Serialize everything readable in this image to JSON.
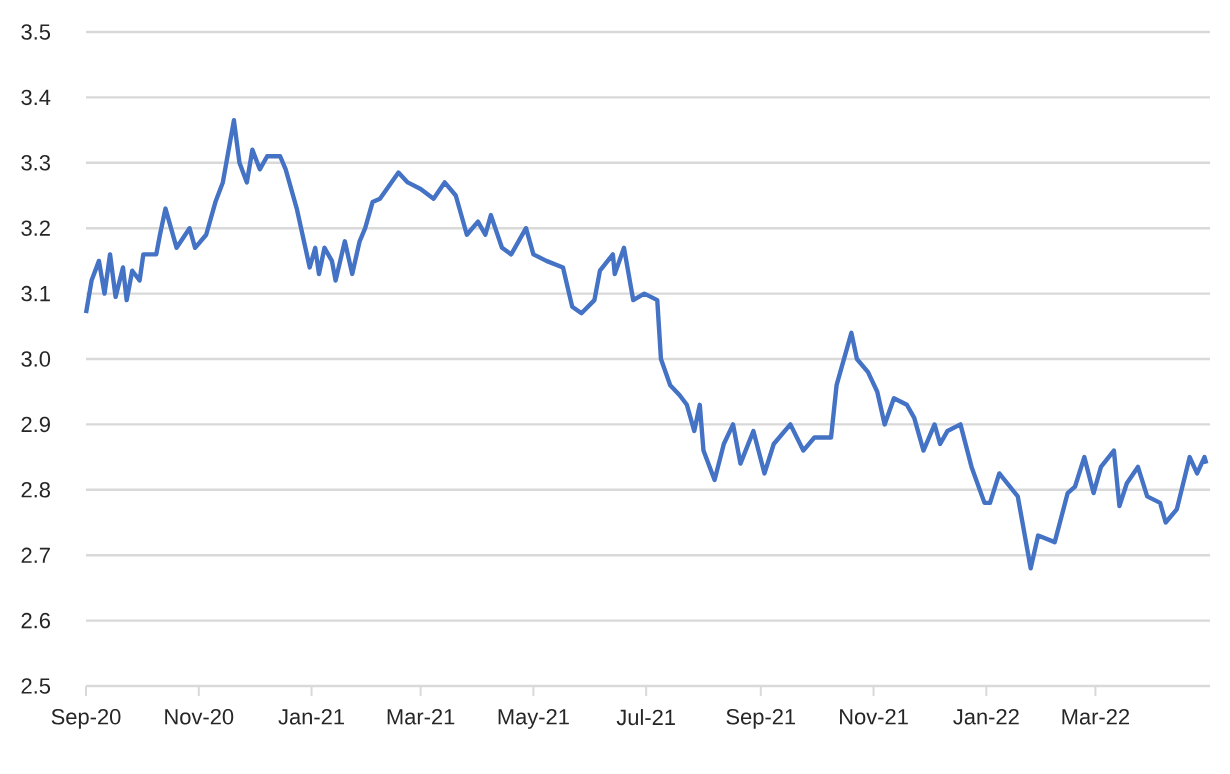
{
  "chart_data": {
    "type": "line",
    "x": [
      "2020-09-01",
      "2020-09-04",
      "2020-09-08",
      "2020-09-11",
      "2020-09-14",
      "2020-09-17",
      "2020-09-21",
      "2020-09-23",
      "2020-09-26",
      "2020-09-30",
      "2020-10-02",
      "2020-10-09",
      "2020-10-11",
      "2020-10-14",
      "2020-10-20",
      "2020-10-27",
      "2020-10-30",
      "2020-11-05",
      "2020-11-10",
      "2020-11-14",
      "2020-11-20",
      "2020-11-23",
      "2020-11-27",
      "2020-11-30",
      "2020-12-04",
      "2020-12-08",
      "2020-12-15",
      "2020-12-18",
      "2020-12-24",
      "2020-12-31",
      "2021-01-03",
      "2021-01-05",
      "2021-01-08",
      "2021-01-12",
      "2021-01-14",
      "2021-01-19",
      "2021-01-23",
      "2021-01-27",
      "2021-01-30",
      "2021-02-03",
      "2021-02-07",
      "2021-02-17",
      "2021-02-22",
      "2021-03-01",
      "2021-03-08",
      "2021-03-14",
      "2021-03-20",
      "2021-03-26",
      "2021-04-01",
      "2021-04-05",
      "2021-04-08",
      "2021-04-14",
      "2021-04-19",
      "2021-04-27",
      "2021-05-01",
      "2021-05-08",
      "2021-05-17",
      "2021-05-22",
      "2021-05-27",
      "2021-06-03",
      "2021-06-06",
      "2021-06-13",
      "2021-06-14",
      "2021-06-19",
      "2021-06-24",
      "2021-06-30",
      "2021-07-07",
      "2021-07-09",
      "2021-07-14",
      "2021-07-19",
      "2021-07-23",
      "2021-07-27",
      "2021-07-30",
      "2021-08-01",
      "2021-08-07",
      "2021-08-12",
      "2021-08-17",
      "2021-08-21",
      "2021-08-28",
      "2021-09-03",
      "2021-09-08",
      "2021-09-17",
      "2021-09-24",
      "2021-09-30",
      "2021-10-09",
      "2021-10-12",
      "2021-10-20",
      "2021-10-23",
      "2021-10-29",
      "2021-11-03",
      "2021-11-07",
      "2021-11-12",
      "2021-11-19",
      "2021-11-23",
      "2021-11-28",
      "2021-12-04",
      "2021-12-07",
      "2021-12-11",
      "2021-12-18",
      "2021-12-24",
      "2021-12-31",
      "2022-01-03",
      "2022-01-08",
      "2022-01-18",
      "2022-01-25",
      "2022-01-29",
      "2022-02-07",
      "2022-02-14",
      "2022-02-18",
      "2022-02-23",
      "2022-02-28",
      "2022-03-04",
      "2022-03-11",
      "2022-03-14",
      "2022-03-18",
      "2022-03-24",
      "2022-03-29",
      "2022-04-05",
      "2022-04-08",
      "2022-04-14",
      "2022-04-21",
      "2022-04-25",
      "2022-04-29",
      "2022-04-30"
    ],
    "series": [
      {
        "color": "#4472c4",
        "values": [
          3.07,
          3.12,
          3.15,
          3.1,
          3.16,
          3.095,
          3.14,
          3.09,
          3.135,
          3.12,
          3.16,
          3.16,
          3.19,
          3.23,
          3.17,
          3.2,
          3.17,
          3.19,
          3.24,
          3.27,
          3.365,
          3.3,
          3.27,
          3.32,
          3.29,
          3.31,
          3.31,
          3.29,
          3.23,
          3.14,
          3.17,
          3.13,
          3.17,
          3.15,
          3.12,
          3.18,
          3.13,
          3.18,
          3.2,
          3.24,
          3.245,
          3.285,
          3.27,
          3.26,
          3.245,
          3.27,
          3.25,
          3.19,
          3.21,
          3.19,
          3.22,
          3.17,
          3.16,
          3.2,
          3.16,
          3.15,
          3.14,
          3.08,
          3.07,
          3.09,
          3.135,
          3.16,
          3.13,
          3.17,
          3.09,
          3.1,
          3.09,
          3.0,
          2.96,
          2.945,
          2.93,
          2.89,
          2.93,
          2.86,
          2.815,
          2.87,
          2.9,
          2.84,
          2.89,
          2.825,
          2.87,
          2.9,
          2.86,
          2.88,
          2.88,
          2.96,
          3.04,
          3.0,
          2.98,
          2.95,
          2.9,
          2.94,
          2.93,
          2.91,
          2.86,
          2.9,
          2.87,
          2.89,
          2.9,
          2.835,
          2.78,
          2.78,
          2.825,
          2.79,
          2.68,
          2.73,
          2.72,
          2.795,
          2.805,
          2.85,
          2.795,
          2.835,
          2.86,
          2.775,
          2.81,
          2.835,
          2.79,
          2.78,
          2.75,
          2.77,
          2.85,
          2.825,
          2.85,
          2.84
        ]
      }
    ],
    "xlim": [
      "2020-09-01",
      "2022-05-02"
    ],
    "xticks": [
      {
        "value": "2020-09-01",
        "label": "Sep-20"
      },
      {
        "value": "2020-11-01",
        "label": "Nov-20"
      },
      {
        "value": "2021-01-01",
        "label": "Jan-21"
      },
      {
        "value": "2021-03-01",
        "label": "Mar-21"
      },
      {
        "value": "2021-05-01",
        "label": "May-21"
      },
      {
        "value": "2021-07-01",
        "label": "Jul-21"
      },
      {
        "value": "2021-09-01",
        "label": "Sep-21"
      },
      {
        "value": "2021-11-01",
        "label": "Nov-21"
      },
      {
        "value": "2022-01-01",
        "label": "Jan-22"
      },
      {
        "value": "2022-03-01",
        "label": "Mar-22"
      }
    ],
    "ylim": [
      2.5,
      3.5
    ],
    "yticks": [
      2.5,
      2.6,
      2.7,
      2.8,
      2.9,
      {
        "value": 3,
        "label": "3.0"
      },
      3.1,
      3.2,
      3.3,
      3.4,
      3.5
    ],
    "grid": "y",
    "marker": "none",
    "line_style": "solid"
  }
}
